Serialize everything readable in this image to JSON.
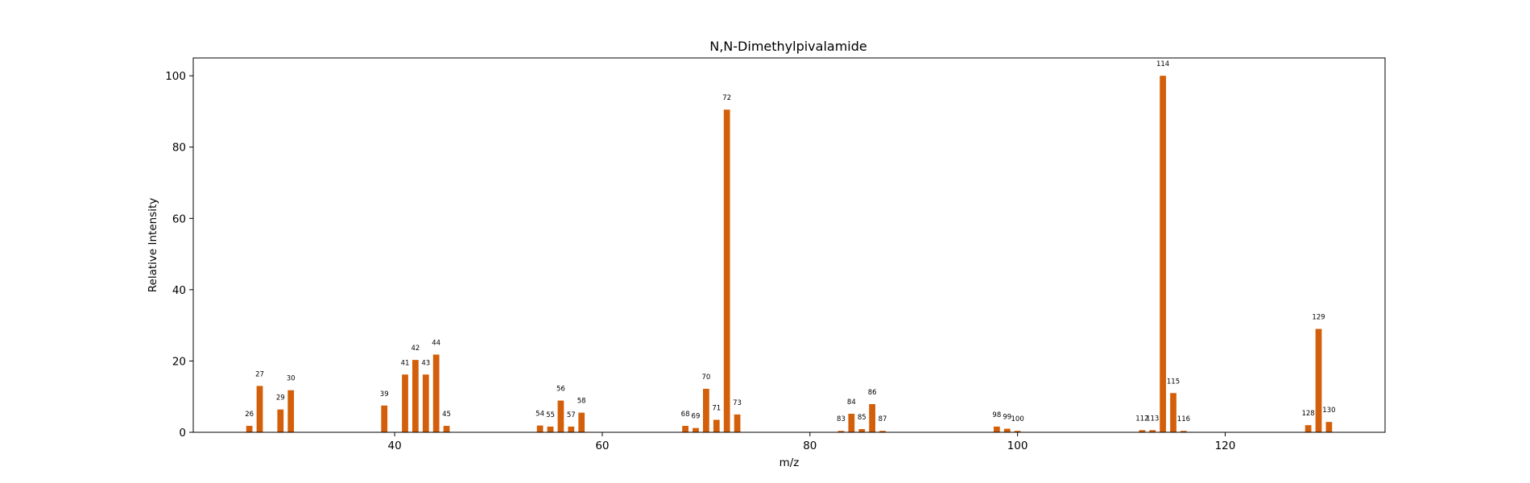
{
  "chart_data": {
    "type": "bar",
    "title": "N,N-Dimethylpivalamide",
    "xlabel": "m/z",
    "ylabel": "Relative Intensity",
    "xlim": [
      20.6,
      135.4
    ],
    "ylim": [
      0,
      105
    ],
    "xticks": [
      40,
      60,
      80,
      100,
      120
    ],
    "yticks": [
      0,
      20,
      40,
      60,
      80,
      100
    ],
    "bar_color": "#d35f0a",
    "bar_labels_shown": true,
    "grid": false,
    "legend": false,
    "bars": [
      {
        "x": 26,
        "y": 1.8
      },
      {
        "x": 27,
        "y": 13.0
      },
      {
        "x": 29,
        "y": 6.4
      },
      {
        "x": 30,
        "y": 11.8
      },
      {
        "x": 39,
        "y": 7.5
      },
      {
        "x": 41,
        "y": 16.2
      },
      {
        "x": 42,
        "y": 20.3
      },
      {
        "x": 43,
        "y": 16.2
      },
      {
        "x": 44,
        "y": 21.8
      },
      {
        "x": 45,
        "y": 1.8
      },
      {
        "x": 54,
        "y": 1.9
      },
      {
        "x": 55,
        "y": 1.6
      },
      {
        "x": 56,
        "y": 8.9
      },
      {
        "x": 57,
        "y": 1.6
      },
      {
        "x": 58,
        "y": 5.5
      },
      {
        "x": 68,
        "y": 1.8
      },
      {
        "x": 69,
        "y": 1.2
      },
      {
        "x": 70,
        "y": 12.2
      },
      {
        "x": 71,
        "y": 3.5
      },
      {
        "x": 72,
        "y": 90.5
      },
      {
        "x": 73,
        "y": 5.0
      },
      {
        "x": 83,
        "y": 0.4
      },
      {
        "x": 84,
        "y": 5.2
      },
      {
        "x": 85,
        "y": 0.9
      },
      {
        "x": 86,
        "y": 7.9
      },
      {
        "x": 87,
        "y": 0.4
      },
      {
        "x": 98,
        "y": 1.6
      },
      {
        "x": 99,
        "y": 1.0
      },
      {
        "x": 100,
        "y": 0.4
      },
      {
        "x": 112,
        "y": 0.6
      },
      {
        "x": 113,
        "y": 0.6
      },
      {
        "x": 114,
        "y": 100.0
      },
      {
        "x": 115,
        "y": 11.0
      },
      {
        "x": 116,
        "y": 0.4
      },
      {
        "x": 128,
        "y": 2.0
      },
      {
        "x": 129,
        "y": 29.0
      },
      {
        "x": 130,
        "y": 2.9
      }
    ]
  }
}
